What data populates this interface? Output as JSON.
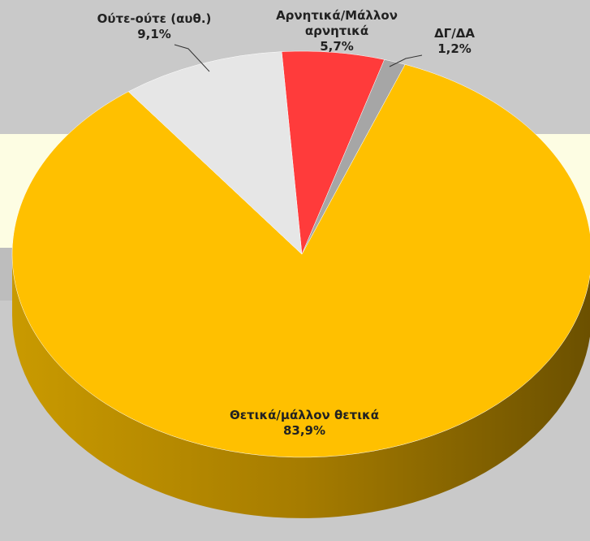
{
  "chart_data": {
    "type": "pie",
    "categories": [
      "Αρνητικά/Μάλλον αρνητικά",
      "ΔΓ/ΔΑ",
      "Θετικά/μάλλον θετικά",
      "Ούτε-ούτε (αυθ.)"
    ],
    "values": [
      5.7,
      1.2,
      83.9,
      9.1
    ],
    "value_labels": [
      "5,7%",
      "1,2%",
      "83,9%",
      "9,1%"
    ],
    "colors": [
      "#ff3b3b",
      "#a6a6a6",
      "#ffc000",
      "#e6e6e6"
    ]
  }
}
